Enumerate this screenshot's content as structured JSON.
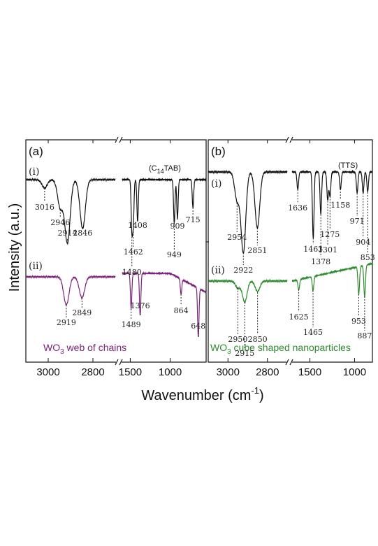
{
  "figure": {
    "ylabel": "Intensity (a.u.)",
    "xlabel_main": "Wavenumber (cm",
    "xlabel_sup": "-1",
    "xlabel_close": ")"
  },
  "chart_data": [
    {
      "type": "line",
      "panel_label": "(a)",
      "compound_label": {
        "prefix": "(C",
        "sub": "14",
        "suffix": "TAB)"
      },
      "xlim_left": [
        3100,
        2700
      ],
      "xlim_right": [
        1600,
        550
      ],
      "x_ticks": [
        "3000",
        "2800",
        "1500",
        "1000"
      ],
      "series": [
        {
          "name": "(i)",
          "color": "#111111",
          "peaks": [
            "3016",
            "2946",
            "2914",
            "2846",
            "1480",
            "1462",
            "1408",
            "949",
            "909",
            "715"
          ]
        },
        {
          "name": "(ii)",
          "color": "#7B237B",
          "peaks": [
            "2919",
            "2849",
            "1489",
            "1376",
            "864",
            "648"
          ]
        }
      ],
      "annotation": {
        "prefix": "WO",
        "sub": "3",
        "suffix": " web of chains",
        "color": "#7B237B"
      }
    },
    {
      "type": "line",
      "panel_label": "(b)",
      "compound_label": {
        "prefix": "(TTS)",
        "sub": "",
        "suffix": ""
      },
      "xlim_left": [
        3100,
        2700
      ],
      "xlim_right": [
        1700,
        800
      ],
      "x_ticks": [
        "3000",
        "2800",
        "1500",
        "1000"
      ],
      "series": [
        {
          "name": "(i)",
          "color": "#111111",
          "peaks": [
            "2954",
            "2922",
            "2851",
            "1636",
            "1463",
            "1378",
            "1301",
            "1275",
            "1158",
            "971",
            "904",
            "853"
          ]
        },
        {
          "name": "(ii)",
          "color": "#2E8B2E",
          "peaks": [
            "2950",
            "2915",
            "2850",
            "1625",
            "1465",
            "953",
            "887"
          ]
        }
      ],
      "annotation": {
        "prefix": "WO",
        "sub": "3",
        "suffix": " cube shaped nanoparticles",
        "color": "#2E8B2E"
      }
    }
  ]
}
